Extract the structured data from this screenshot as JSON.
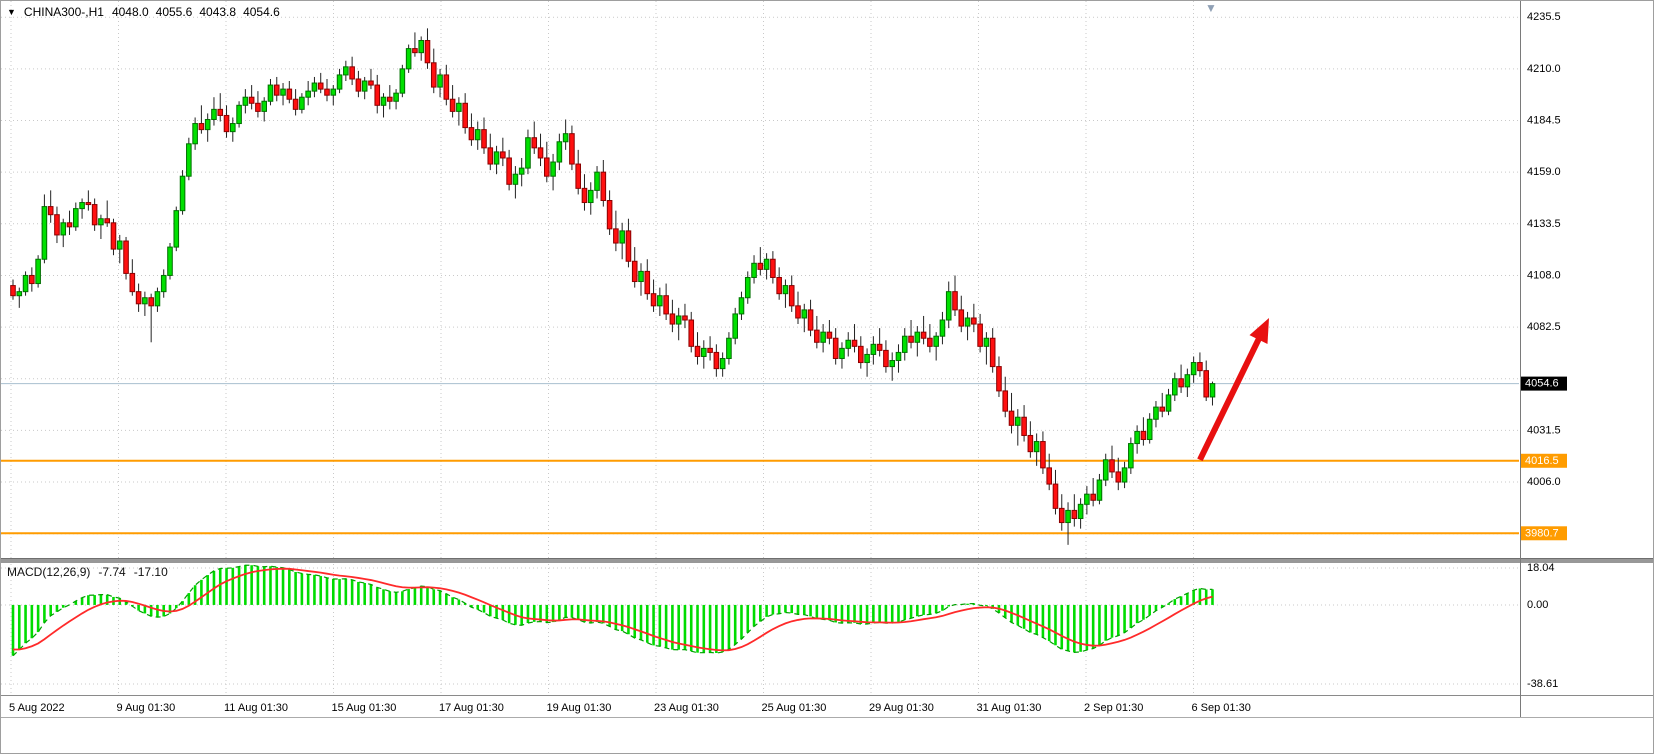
{
  "header": {
    "symbol_tf": "CHINA300-,H1",
    "open": "4048.0",
    "high": "4055.6",
    "low": "4043.8",
    "close": "4054.6"
  },
  "macd_header": {
    "label": "MACD(12,26,9)",
    "value_main": "-7.74",
    "value_signal": "-17.10"
  },
  "icons": {
    "chart_menu": "▼",
    "shift_marker": "▼"
  },
  "chart_data": {
    "type": "candlestick",
    "title": "CHINA300-,H1",
    "symbol": "CHINA300-",
    "timeframe": "H1",
    "grid": true,
    "y_axis": {
      "range": [
        3968.5,
        4243.5
      ],
      "ticks": [
        4235.5,
        4210.0,
        4184.5,
        4159.0,
        4133.5,
        4108.0,
        4082.5,
        4057.0,
        4031.5,
        4006.0,
        3980.5
      ],
      "hidden_tick_labels": [
        4057.0,
        3980.5
      ]
    },
    "x_axis": {
      "labels": [
        "5 Aug 2022",
        "9 Aug 01:30",
        "11 Aug 01:30",
        "15 Aug 01:30",
        "17 Aug 01:30",
        "19 Aug 01:30",
        "23 Aug 01:30",
        "25 Aug 01:30",
        "29 Aug 01:30",
        "31 Aug 01:30",
        "2 Sep 01:30",
        "6 Sep 01:30"
      ]
    },
    "current_price": 4054.6,
    "support_lines": [
      {
        "price": 4016.5,
        "label": "4016.5"
      },
      {
        "price": 3980.7,
        "label": "3980.7"
      }
    ],
    "trend_arrow": {
      "from_bar": 189,
      "from_price": 4017,
      "to_bar": 200,
      "to_price": 4087
    },
    "macd": {
      "label": "MACD(12,26,9)",
      "params": [
        12,
        26,
        9
      ],
      "value_main": -7.74,
      "value_signal": -17.1,
      "scale_ticks": [
        18.04,
        0.0,
        -38.61
      ],
      "range": [
        -44,
        20
      ]
    },
    "colors": {
      "up": "#00E000",
      "up_border": "#007000",
      "down": "#FF1010",
      "down_border": "#8B0000",
      "wick": "#222222",
      "grid": "#C9C9C9",
      "support": "#FF9C00",
      "support_badge_text": "#FFFFFF",
      "price_line": "#A8BFCF",
      "price_badge_bg": "#000000",
      "price_badge_text": "#FFFFFF",
      "macd_histogram": "#00DC00",
      "macd_signal": "#FF2A2A",
      "macd_main_dashed": "#00A000",
      "arrow": "#E81010",
      "axis_text": "#000000",
      "panel_divider": "#989898"
    },
    "ohlc": [
      [
        4103,
        4106,
        4096,
        4098
      ],
      [
        4098,
        4102,
        4092,
        4100
      ],
      [
        4100,
        4110,
        4098,
        4108
      ],
      [
        4108,
        4112,
        4100,
        4104
      ],
      [
        4104,
        4118,
        4102,
        4116
      ],
      [
        4116,
        4148,
        4114,
        4142
      ],
      [
        4142,
        4150,
        4134,
        4138
      ],
      [
        4138,
        4142,
        4124,
        4128
      ],
      [
        4128,
        4136,
        4122,
        4134
      ],
      [
        4134,
        4140,
        4128,
        4132
      ],
      [
        4132,
        4144,
        4130,
        4141
      ],
      [
        4141,
        4146,
        4136,
        4144
      ],
      [
        4144,
        4150,
        4140,
        4143
      ],
      [
        4143,
        4146,
        4130,
        4133
      ],
      [
        4133,
        4138,
        4126,
        4136
      ],
      [
        4136,
        4145,
        4132,
        4134
      ],
      [
        4134,
        4136,
        4118,
        4121
      ],
      [
        4121,
        4128,
        4114,
        4125
      ],
      [
        4125,
        4127,
        4106,
        4109
      ],
      [
        4109,
        4116,
        4098,
        4100
      ],
      [
        4100,
        4104,
        4090,
        4094
      ],
      [
        4094,
        4100,
        4088,
        4097
      ],
      [
        4097,
        4099,
        4075,
        4093
      ],
      [
        4093,
        4102,
        4090,
        4100
      ],
      [
        4100,
        4111,
        4097,
        4108
      ],
      [
        4108,
        4124,
        4106,
        4122
      ],
      [
        4122,
        4142,
        4120,
        4140
      ],
      [
        4140,
        4160,
        4138,
        4157
      ],
      [
        4157,
        4176,
        4155,
        4173
      ],
      [
        4173,
        4186,
        4170,
        4183
      ],
      [
        4183,
        4192,
        4178,
        4180
      ],
      [
        4180,
        4188,
        4174,
        4185
      ],
      [
        4185,
        4196,
        4182,
        4190
      ],
      [
        4190,
        4198,
        4184,
        4187
      ],
      [
        4187,
        4192,
        4176,
        4179
      ],
      [
        4179,
        4186,
        4174,
        4183
      ],
      [
        4183,
        4194,
        4181,
        4192
      ],
      [
        4192,
        4200,
        4188,
        4196
      ],
      [
        4196,
        4202,
        4190,
        4193
      ],
      [
        4193,
        4199,
        4186,
        4189
      ],
      [
        4189,
        4196,
        4184,
        4194
      ],
      [
        4194,
        4205,
        4192,
        4202
      ],
      [
        4202,
        4206,
        4194,
        4197
      ],
      [
        4197,
        4203,
        4192,
        4200
      ],
      [
        4200,
        4204,
        4193,
        4195
      ],
      [
        4195,
        4200,
        4187,
        4190
      ],
      [
        4190,
        4198,
        4188,
        4196
      ],
      [
        4196,
        4204,
        4192,
        4199
      ],
      [
        4199,
        4206,
        4196,
        4203
      ],
      [
        4203,
        4208,
        4198,
        4200
      ],
      [
        4200,
        4205,
        4194,
        4197
      ],
      [
        4197,
        4202,
        4192,
        4200
      ],
      [
        4200,
        4210,
        4198,
        4207
      ],
      [
        4207,
        4214,
        4204,
        4211
      ],
      [
        4211,
        4216,
        4202,
        4205
      ],
      [
        4205,
        4209,
        4196,
        4199
      ],
      [
        4199,
        4206,
        4195,
        4204
      ],
      [
        4204,
        4210,
        4200,
        4202
      ],
      [
        4202,
        4207,
        4188,
        4192
      ],
      [
        4192,
        4198,
        4186,
        4196
      ],
      [
        4196,
        4202,
        4190,
        4194
      ],
      [
        4194,
        4200,
        4190,
        4198
      ],
      [
        4198,
        4212,
        4196,
        4210
      ],
      [
        4210,
        4222,
        4208,
        4220
      ],
      [
        4220,
        4228,
        4216,
        4218
      ],
      [
        4218,
        4226,
        4214,
        4224
      ],
      [
        4224,
        4230,
        4210,
        4213
      ],
      [
        4213,
        4220,
        4198,
        4201
      ],
      [
        4201,
        4210,
        4196,
        4207
      ],
      [
        4207,
        4212,
        4192,
        4195
      ],
      [
        4195,
        4202,
        4186,
        4189
      ],
      [
        4189,
        4196,
        4182,
        4193
      ],
      [
        4193,
        4198,
        4178,
        4181
      ],
      [
        4181,
        4188,
        4172,
        4175
      ],
      [
        4175,
        4184,
        4170,
        4180
      ],
      [
        4180,
        4186,
        4168,
        4171
      ],
      [
        4171,
        4178,
        4160,
        4163
      ],
      [
        4163,
        4172,
        4158,
        4169
      ],
      [
        4169,
        4176,
        4162,
        4166
      ],
      [
        4166,
        4170,
        4150,
        4153
      ],
      [
        4153,
        4162,
        4146,
        4158
      ],
      [
        4158,
        4166,
        4152,
        4161
      ],
      [
        4161,
        4180,
        4158,
        4176
      ],
      [
        4176,
        4184,
        4168,
        4171
      ],
      [
        4171,
        4178,
        4162,
        4166
      ],
      [
        4166,
        4174,
        4154,
        4157
      ],
      [
        4157,
        4168,
        4150,
        4164
      ],
      [
        4164,
        4178,
        4160,
        4174
      ],
      [
        4174,
        4185,
        4170,
        4178
      ],
      [
        4178,
        4182,
        4160,
        4163
      ],
      [
        4163,
        4170,
        4148,
        4151
      ],
      [
        4151,
        4158,
        4140,
        4144
      ],
      [
        4144,
        4154,
        4138,
        4150
      ],
      [
        4150,
        4162,
        4146,
        4159
      ],
      [
        4159,
        4165,
        4142,
        4145
      ],
      [
        4145,
        4150,
        4128,
        4131
      ],
      [
        4131,
        4140,
        4120,
        4124
      ],
      [
        4124,
        4134,
        4116,
        4130
      ],
      [
        4130,
        4136,
        4112,
        4115
      ],
      [
        4115,
        4122,
        4102,
        4105
      ],
      [
        4105,
        4114,
        4098,
        4110
      ],
      [
        4110,
        4116,
        4096,
        4099
      ],
      [
        4099,
        4106,
        4090,
        4093
      ],
      [
        4093,
        4102,
        4088,
        4098
      ],
      [
        4098,
        4104,
        4086,
        4089
      ],
      [
        4089,
        4096,
        4080,
        4084
      ],
      [
        4084,
        4092,
        4076,
        4088
      ],
      [
        4088,
        4094,
        4082,
        4086
      ],
      [
        4086,
        4090,
        4070,
        4073
      ],
      [
        4073,
        4080,
        4064,
        4068
      ],
      [
        4068,
        4076,
        4062,
        4072
      ],
      [
        4072,
        4078,
        4066,
        4070
      ],
      [
        4070,
        4074,
        4058,
        4062
      ],
      [
        4062,
        4070,
        4058,
        4067
      ],
      [
        4067,
        4080,
        4064,
        4077
      ],
      [
        4077,
        4092,
        4074,
        4089
      ],
      [
        4089,
        4100,
        4086,
        4097
      ],
      [
        4097,
        4110,
        4094,
        4107
      ],
      [
        4107,
        4118,
        4104,
        4114
      ],
      [
        4114,
        4122,
        4108,
        4111
      ],
      [
        4111,
        4119,
        4106,
        4116
      ],
      [
        4116,
        4120,
        4104,
        4107
      ],
      [
        4107,
        4112,
        4096,
        4099
      ],
      [
        4099,
        4106,
        4092,
        4103
      ],
      [
        4103,
        4108,
        4090,
        4093
      ],
      [
        4093,
        4100,
        4084,
        4087
      ],
      [
        4087,
        4094,
        4080,
        4091
      ],
      [
        4091,
        4096,
        4078,
        4081
      ],
      [
        4081,
        4088,
        4072,
        4075
      ],
      [
        4075,
        4084,
        4070,
        4080
      ],
      [
        4080,
        4086,
        4074,
        4077
      ],
      [
        4077,
        4082,
        4064,
        4067
      ],
      [
        4067,
        4075,
        4062,
        4072
      ],
      [
        4072,
        4080,
        4068,
        4076
      ],
      [
        4076,
        4084,
        4070,
        4073
      ],
      [
        4073,
        4078,
        4062,
        4065
      ],
      [
        4065,
        4072,
        4058,
        4069
      ],
      [
        4069,
        4078,
        4064,
        4074
      ],
      [
        4074,
        4082,
        4068,
        4071
      ],
      [
        4071,
        4076,
        4060,
        4063
      ],
      [
        4063,
        4070,
        4056,
        4066
      ],
      [
        4066,
        4074,
        4060,
        4070
      ],
      [
        4070,
        4082,
        4066,
        4078
      ],
      [
        4078,
        4086,
        4072,
        4075
      ],
      [
        4075,
        4083,
        4068,
        4080
      ],
      [
        4080,
        4088,
        4074,
        4077
      ],
      [
        4077,
        4084,
        4070,
        4073
      ],
      [
        4073,
        4080,
        4066,
        4078
      ],
      [
        4078,
        4090,
        4074,
        4086
      ],
      [
        4086,
        4105,
        4082,
        4100
      ],
      [
        4100,
        4108,
        4088,
        4091
      ],
      [
        4091,
        4098,
        4080,
        4083
      ],
      [
        4083,
        4090,
        4076,
        4087
      ],
      [
        4087,
        4094,
        4080,
        4084
      ],
      [
        4084,
        4089,
        4070,
        4073
      ],
      [
        4073,
        4080,
        4064,
        4077
      ],
      [
        4077,
        4082,
        4060,
        4063
      ],
      [
        4063,
        4068,
        4048,
        4051
      ],
      [
        4051,
        4058,
        4038,
        4041
      ],
      [
        4041,
        4050,
        4030,
        4034
      ],
      [
        4034,
        4042,
        4024,
        4038
      ],
      [
        4038,
        4044,
        4026,
        4029
      ],
      [
        4029,
        4036,
        4018,
        4021
      ],
      [
        4021,
        4030,
        4014,
        4026
      ],
      [
        4026,
        4031,
        4010,
        4013
      ],
      [
        4013,
        4020,
        4002,
        4005
      ],
      [
        4005,
        4012,
        3990,
        3993
      ],
      [
        3993,
        4000,
        3982,
        3986
      ],
      [
        3986,
        3996,
        3975,
        3992
      ],
      [
        3992,
        4000,
        3984,
        3988
      ],
      [
        3988,
        3998,
        3983,
        3995
      ],
      [
        3995,
        4004,
        3990,
        4000
      ],
      [
        4000,
        4008,
        3994,
        3997
      ],
      [
        3997,
        4010,
        3995,
        4007
      ],
      [
        4007,
        4020,
        4004,
        4017
      ],
      [
        4017,
        4024,
        4008,
        4011
      ],
      [
        4011,
        4018,
        4002,
        4006
      ],
      [
        4006,
        4016,
        4003,
        4013
      ],
      [
        4013,
        4028,
        4010,
        4025
      ],
      [
        4025,
        4034,
        4020,
        4031
      ],
      [
        4031,
        4038,
        4024,
        4027
      ],
      [
        4027,
        4040,
        4025,
        4037
      ],
      [
        4037,
        4046,
        4033,
        4043
      ],
      [
        4043,
        4050,
        4038,
        4041
      ],
      [
        4041,
        4052,
        4039,
        4049
      ],
      [
        4049,
        4060,
        4046,
        4057
      ],
      [
        4057,
        4064,
        4050,
        4053
      ],
      [
        4053,
        4062,
        4048,
        4059
      ],
      [
        4059,
        4068,
        4055,
        4065
      ],
      [
        4065,
        4070,
        4058,
        4061
      ],
      [
        4061,
        4066,
        4046,
        4048
      ],
      [
        4048,
        4055.6,
        4043.8,
        4054.6
      ]
    ]
  }
}
